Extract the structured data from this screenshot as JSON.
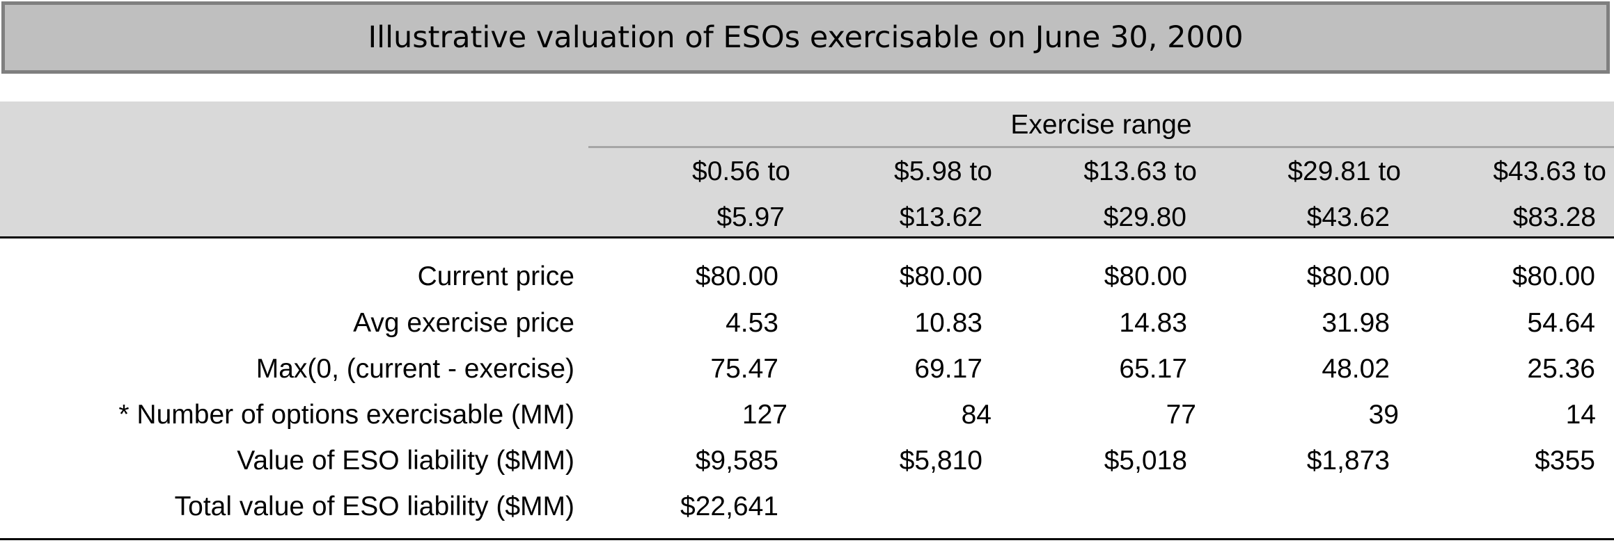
{
  "title": "Illustrative valuation of ESOs exercisable on June 30, 2000",
  "table": {
    "group_header": "Exercise range",
    "columns": [
      {
        "line1": "$0.56 to",
        "line2": "$5.97"
      },
      {
        "line1": "$5.98 to",
        "line2": "$13.62"
      },
      {
        "line1": "$13.63 to",
        "line2": "$29.80"
      },
      {
        "line1": "$29.81 to",
        "line2": "$43.62"
      },
      {
        "line1": "$43.63 to",
        "line2": "$83.28"
      }
    ],
    "rows": [
      {
        "label": "Current price",
        "values": [
          "$80.00",
          "$80.00",
          "$80.00",
          "$80.00",
          "$80.00"
        ]
      },
      {
        "label": "Avg exercise price",
        "values": [
          "4.53",
          "10.83",
          "14.83",
          "31.98",
          "54.64"
        ]
      },
      {
        "label": "Max(0, (current - exercise)",
        "values": [
          "75.47",
          "69.17",
          "65.17",
          "48.02",
          "25.36"
        ]
      },
      {
        "label": "* Number of options exercisable (MM)",
        "values": [
          "127",
          "84",
          "77",
          "39",
          "14"
        ]
      },
      {
        "label": "Value of ESO liability ($MM)",
        "values": [
          "$9,585",
          "$5,810",
          "$5,018",
          "$1,873",
          "$355"
        ]
      },
      {
        "label": "Total value of ESO liability ($MM)",
        "values": [
          "$22,641",
          "",
          "",
          "",
          ""
        ]
      }
    ]
  },
  "colors": {
    "title_background": "#bfbfbf",
    "title_border": "#7f7f7f",
    "header_background": "#d9d9d9"
  }
}
